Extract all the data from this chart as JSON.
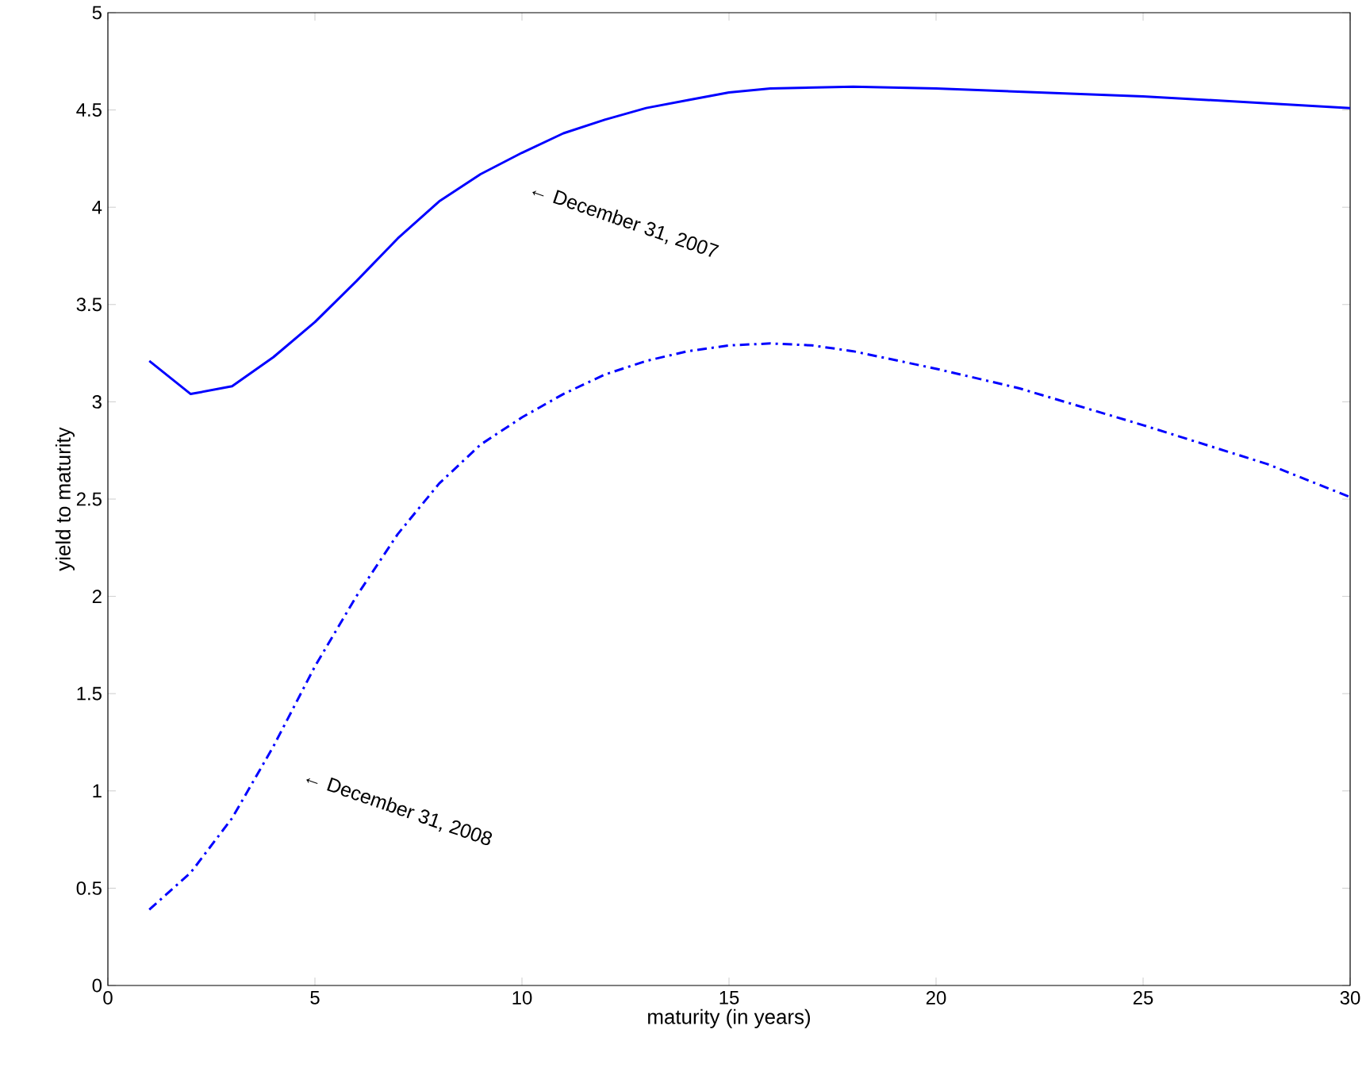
{
  "chart_data": {
    "type": "line",
    "xlabel": "maturity (in years)",
    "ylabel": "yield to maturity",
    "xlim": [
      0,
      30
    ],
    "ylim": [
      0,
      5
    ],
    "xticks": [
      0,
      5,
      10,
      15,
      20,
      25,
      30
    ],
    "yticks": [
      0,
      {
        "value": 0.5,
        "label": "0.5"
      },
      1,
      {
        "value": 1.5,
        "label": "1.5"
      },
      2,
      {
        "value": 2.5,
        "label": "2.5"
      },
      3,
      {
        "value": 3.5,
        "label": "3.5"
      },
      4,
      {
        "value": 4.5,
        "label": "4.5"
      },
      5
    ],
    "grid": false,
    "marker": "none",
    "series": [
      {
        "color": "#0000ff",
        "line_style": "solid",
        "x": [
          1,
          2,
          3,
          4,
          5,
          6,
          7,
          8,
          9,
          10,
          11,
          12,
          13,
          14,
          15,
          16,
          18,
          20,
          25,
          30
        ],
        "values": [
          3.21,
          3.04,
          3.08,
          3.23,
          3.41,
          3.62,
          3.84,
          4.03,
          4.17,
          4.28,
          4.38,
          4.45,
          4.51,
          4.55,
          4.59,
          4.61,
          4.62,
          4.61,
          4.57,
          4.51
        ]
      },
      {
        "color": "#0000ff",
        "line_style": "dashdot",
        "x": [
          1,
          2,
          3,
          4,
          5,
          6,
          7,
          8,
          9,
          10,
          11,
          12,
          13,
          14,
          15,
          16,
          17,
          18,
          20,
          22,
          25,
          28,
          30
        ],
        "values": [
          0.39,
          0.58,
          0.86,
          1.23,
          1.64,
          2.0,
          2.32,
          2.58,
          2.78,
          2.92,
          3.04,
          3.14,
          3.21,
          3.26,
          3.29,
          3.3,
          3.29,
          3.26,
          3.17,
          3.07,
          2.88,
          2.68,
          2.51
        ]
      }
    ],
    "annotations": [
      "← December 31, 2007",
      "← December 31, 2008"
    ]
  }
}
